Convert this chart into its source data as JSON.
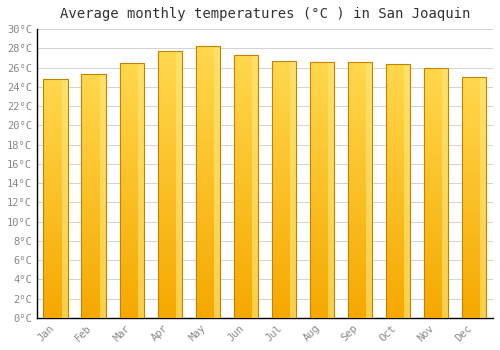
{
  "title": "Average monthly temperatures (°C ) in San Joaquin",
  "months": [
    "Jan",
    "Feb",
    "Mar",
    "Apr",
    "May",
    "Jun",
    "Jul",
    "Aug",
    "Sep",
    "Oct",
    "Nov",
    "Dec"
  ],
  "values": [
    24.8,
    25.3,
    26.5,
    27.7,
    28.2,
    27.3,
    26.7,
    26.6,
    26.6,
    26.4,
    26.0,
    25.0
  ],
  "bar_color_bottom": "#F5A800",
  "bar_color_top": "#FFD84D",
  "bar_edge_color": "#C88000",
  "bar_highlight_color": "#FFE87A",
  "background_color": "#FFFFFF",
  "plot_bg_color": "#FFFFFF",
  "grid_color": "#CCCCCC",
  "ylim": [
    0,
    30
  ],
  "ytick_step": 2,
  "title_fontsize": 10,
  "tick_fontsize": 7.5,
  "tick_color": "#888888",
  "axis_color": "#000000",
  "figsize": [
    5.0,
    3.5
  ],
  "dpi": 100
}
